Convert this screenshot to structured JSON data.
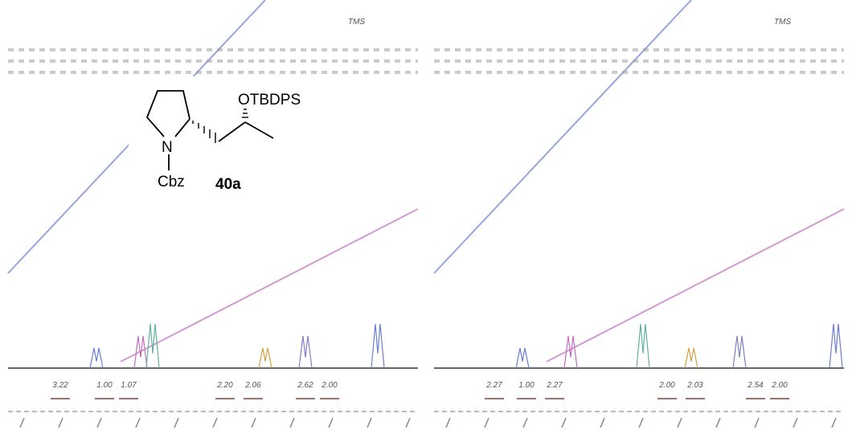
{
  "spectra": [
    {
      "reference_label": "TMS",
      "integrals": [
        "3.22",
        "1.00",
        "1.07",
        "2.20",
        "2.06",
        "2.62",
        "2.00"
      ]
    },
    {
      "reference_label": "TMS",
      "integrals": [
        "2.27",
        "1.00",
        "2.27",
        "2.00",
        "2.03",
        "2.54",
        "2.00"
      ]
    }
  ],
  "structure": {
    "substituent": "OTBDPS",
    "nitrogen": "N",
    "protecting_group": "Cbz",
    "compound_label": "40a"
  }
}
